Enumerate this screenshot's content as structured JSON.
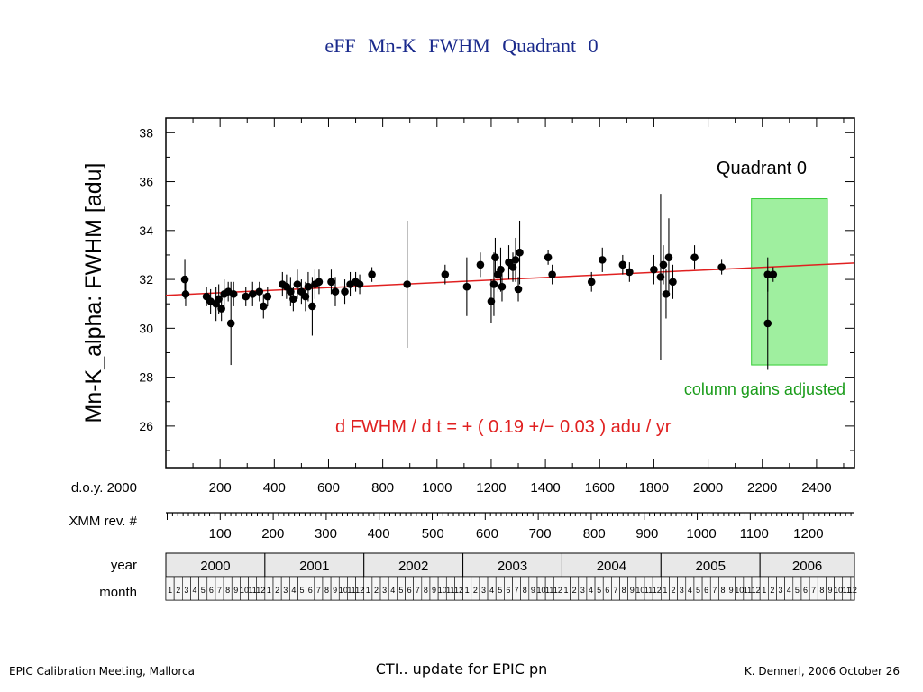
{
  "slide": {
    "title": "eFF  Mn-K  FWHM  Quadrant 0",
    "footer_left": "EPIC Calibration Meeting, Mallorca",
    "footer_center": "CTI.. update for EPIC pn",
    "footer_right": "K. Dennerl, 2006 October 26"
  },
  "chart_data": {
    "type": "scatter",
    "title": "Quadrant 0",
    "ylabel": "Mn-K_alpha:  FWHM  [adu]",
    "xlabel": "d.o.y. 2000",
    "xlim": [
      0,
      2540
    ],
    "ylim": [
      24.3,
      38.6
    ],
    "y_ticks": [
      26,
      28,
      30,
      32,
      34,
      36,
      38
    ],
    "x_ticks": [
      200,
      400,
      600,
      800,
      1000,
      1200,
      1400,
      1600,
      1800,
      2000,
      2200,
      2400
    ],
    "secondary_axis": {
      "label": "XMM rev. #",
      "ticks": [
        {
          "rev": "100",
          "doy": 200
        },
        {
          "rev": "200",
          "doy": 395
        },
        {
          "rev": "300",
          "doy": 590
        },
        {
          "rev": "400",
          "doy": 785
        },
        {
          "rev": "500",
          "doy": 985
        },
        {
          "rev": "600",
          "doy": 1185
        },
        {
          "rev": "700",
          "doy": 1380
        },
        {
          "rev": "800",
          "doy": 1580
        },
        {
          "rev": "900",
          "doy": 1775
        },
        {
          "rev": "1000",
          "doy": 1975
        },
        {
          "rev": "1100",
          "doy": 2170
        },
        {
          "rev": "1200",
          "doy": 2370
        }
      ]
    },
    "year_axis": {
      "label": "year",
      "years": [
        "2000",
        "2001",
        "2002",
        "2003",
        "2004",
        "2005",
        "2006"
      ],
      "month_label": "month",
      "months": [
        "1",
        "2",
        "3",
        "4",
        "5",
        "6",
        "7",
        "8",
        "9",
        "10",
        "11",
        "12"
      ],
      "year_start_doy": 0,
      "days_per_year": 365.25
    },
    "fit": {
      "y_at_0": 31.35,
      "slope_per_day": 0.00052,
      "color": "#e02020"
    },
    "annotation_fit": "d FWHM / d t  = +  ( 0.19 +/− 0.03 )  adu / yr",
    "annotation_box": "column gains adjusted",
    "highlight": {
      "x_range": [
        2160,
        2440
      ],
      "y_range": [
        28.5,
        35.3
      ],
      "color": "#9fef9f",
      "border": "#33cc33"
    },
    "points": [
      {
        "x": 70,
        "y": 32.0,
        "e": 0.8
      },
      {
        "x": 73,
        "y": 31.4,
        "e": 0.5
      },
      {
        "x": 150,
        "y": 31.3,
        "e": 0.4
      },
      {
        "x": 165,
        "y": 31.1,
        "e": 0.5
      },
      {
        "x": 185,
        "y": 31.0,
        "e": 0.7
      },
      {
        "x": 195,
        "y": 31.2,
        "e": 0.6
      },
      {
        "x": 205,
        "y": 30.8,
        "e": 0.5
      },
      {
        "x": 215,
        "y": 31.4,
        "e": 0.6
      },
      {
        "x": 230,
        "y": 31.5,
        "e": 0.4
      },
      {
        "x": 240,
        "y": 30.2,
        "e": 1.7
      },
      {
        "x": 250,
        "y": 31.4,
        "e": 0.5
      },
      {
        "x": 295,
        "y": 31.3,
        "e": 0.4
      },
      {
        "x": 320,
        "y": 31.4,
        "e": 0.5
      },
      {
        "x": 345,
        "y": 31.5,
        "e": 0.4
      },
      {
        "x": 360,
        "y": 30.9,
        "e": 0.5
      },
      {
        "x": 375,
        "y": 31.3,
        "e": 0.4
      },
      {
        "x": 430,
        "y": 31.8,
        "e": 0.5
      },
      {
        "x": 445,
        "y": 31.7,
        "e": 0.5
      },
      {
        "x": 460,
        "y": 31.5,
        "e": 0.6
      },
      {
        "x": 470,
        "y": 31.2,
        "e": 0.5
      },
      {
        "x": 485,
        "y": 31.8,
        "e": 0.6
      },
      {
        "x": 500,
        "y": 31.5,
        "e": 0.5
      },
      {
        "x": 515,
        "y": 31.3,
        "e": 0.6
      },
      {
        "x": 525,
        "y": 31.7,
        "e": 0.6
      },
      {
        "x": 540,
        "y": 30.9,
        "e": 1.2
      },
      {
        "x": 550,
        "y": 31.8,
        "e": 0.6
      },
      {
        "x": 565,
        "y": 31.9,
        "e": 0.5
      },
      {
        "x": 610,
        "y": 31.9,
        "e": 0.5
      },
      {
        "x": 625,
        "y": 31.5,
        "e": 0.6
      },
      {
        "x": 660,
        "y": 31.5,
        "e": 0.5
      },
      {
        "x": 680,
        "y": 31.8,
        "e": 0.5
      },
      {
        "x": 700,
        "y": 31.9,
        "e": 0.4
      },
      {
        "x": 715,
        "y": 31.8,
        "e": 0.4
      },
      {
        "x": 760,
        "y": 32.2,
        "e": 0.3
      },
      {
        "x": 890,
        "y": 31.8,
        "e": 2.6
      },
      {
        "x": 1030,
        "y": 32.2,
        "e": 0.4
      },
      {
        "x": 1110,
        "y": 31.7,
        "e": 1.2
      },
      {
        "x": 1160,
        "y": 32.6,
        "e": 0.5
      },
      {
        "x": 1200,
        "y": 31.1,
        "e": 0.9
      },
      {
        "x": 1210,
        "y": 31.8,
        "e": 1.3
      },
      {
        "x": 1215,
        "y": 32.9,
        "e": 0.8
      },
      {
        "x": 1225,
        "y": 32.2,
        "e": 0.7
      },
      {
        "x": 1235,
        "y": 32.4,
        "e": 0.9
      },
      {
        "x": 1240,
        "y": 31.7,
        "e": 0.6
      },
      {
        "x": 1265,
        "y": 32.7,
        "e": 0.7
      },
      {
        "x": 1280,
        "y": 32.5,
        "e": 0.6
      },
      {
        "x": 1290,
        "y": 32.8,
        "e": 0.9
      },
      {
        "x": 1300,
        "y": 31.6,
        "e": 0.5
      },
      {
        "x": 1305,
        "y": 33.1,
        "e": 1.3
      },
      {
        "x": 1410,
        "y": 32.9,
        "e": 0.3
      },
      {
        "x": 1425,
        "y": 32.2,
        "e": 0.4
      },
      {
        "x": 1570,
        "y": 31.9,
        "e": 0.4
      },
      {
        "x": 1610,
        "y": 32.8,
        "e": 0.5
      },
      {
        "x": 1685,
        "y": 32.6,
        "e": 0.4
      },
      {
        "x": 1710,
        "y": 32.3,
        "e": 0.4
      },
      {
        "x": 1800,
        "y": 32.4,
        "e": 0.6
      },
      {
        "x": 1825,
        "y": 32.1,
        "e": 3.4
      },
      {
        "x": 1835,
        "y": 32.6,
        "e": 0.8
      },
      {
        "x": 1845,
        "y": 31.4,
        "e": 1.0
      },
      {
        "x": 1855,
        "y": 32.9,
        "e": 1.6
      },
      {
        "x": 1870,
        "y": 31.9,
        "e": 0.7
      },
      {
        "x": 1950,
        "y": 32.9,
        "e": 0.5
      },
      {
        "x": 2050,
        "y": 32.5,
        "e": 0.3
      },
      {
        "x": 2220,
        "y": 32.2,
        "e": 0.7
      },
      {
        "x": 2220,
        "y": 30.2,
        "e": 1.9
      },
      {
        "x": 2240,
        "y": 32.2,
        "e": 0.3
      }
    ]
  }
}
